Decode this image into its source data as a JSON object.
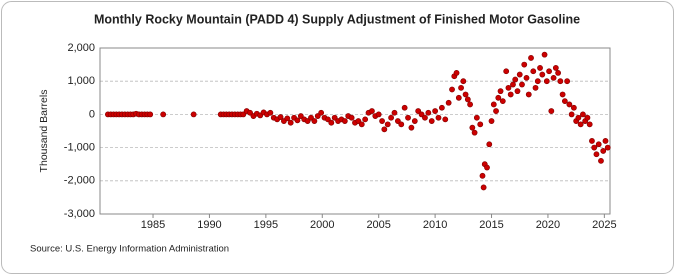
{
  "chart_data": {
    "type": "scatter",
    "title": "Monthly Rocky Mountain (PADD 4) Supply Adjustment of Finished Motor Gasoline",
    "y_label": "Thousand Barrels",
    "source": "Source: U.S. Energy Information Administration",
    "color": "#cc0000",
    "grid": true,
    "xlim": [
      1980.3,
      2025.5
    ],
    "xticks": [
      1985,
      1990,
      1995,
      2000,
      2005,
      2010,
      2015,
      2020,
      2025
    ],
    "ylim": [
      -3000,
      2000
    ],
    "yticks": [
      {
        "value": -3000,
        "label": "-3,000"
      },
      {
        "value": -2000,
        "label": "-2,000"
      },
      {
        "value": -1000,
        "label": "-1,000"
      },
      0,
      {
        "value": 1000,
        "label": "1,000"
      },
      {
        "value": 2000,
        "label": "2,000"
      }
    ],
    "x": [
      1981.0,
      1981.25,
      1981.5,
      1981.75,
      1982.0,
      1982.25,
      1982.5,
      1982.75,
      1983.0,
      1983.25,
      1983.5,
      1983.75,
      1984.0,
      1984.25,
      1984.5,
      1984.75,
      1985.9,
      1988.6,
      1991.0,
      1991.25,
      1991.5,
      1991.75,
      1992.0,
      1992.25,
      1992.5,
      1992.75,
      1993.0,
      1993.3,
      1993.6,
      1993.9,
      1994.2,
      1994.5,
      1994.8,
      1995.1,
      1995.4,
      1995.7,
      1996.0,
      1996.3,
      1996.6,
      1996.9,
      1997.2,
      1997.5,
      1997.8,
      1998.1,
      1998.4,
      1998.7,
      1999.0,
      1999.3,
      1999.6,
      1999.9,
      2000.2,
      2000.5,
      2000.8,
      2001.1,
      2001.4,
      2001.7,
      2002.0,
      2002.3,
      2002.6,
      2002.9,
      2003.2,
      2003.5,
      2003.8,
      2004.1,
      2004.4,
      2004.7,
      2005.0,
      2005.3,
      2005.5,
      2005.8,
      2006.1,
      2006.4,
      2006.7,
      2007.0,
      2007.3,
      2007.6,
      2007.9,
      2008.2,
      2008.5,
      2008.8,
      2009.1,
      2009.4,
      2009.7,
      2010.0,
      2010.3,
      2010.6,
      2010.9,
      2011.2,
      2011.5,
      2011.7,
      2011.9,
      2012.1,
      2012.3,
      2012.5,
      2012.7,
      2012.9,
      2013.1,
      2013.3,
      2013.5,
      2013.7,
      2014.0,
      2014.2,
      2014.3,
      2014.4,
      2014.6,
      2014.8,
      2015.0,
      2015.2,
      2015.4,
      2015.6,
      2015.8,
      2016.0,
      2016.3,
      2016.5,
      2016.7,
      2016.9,
      2017.1,
      2017.3,
      2017.5,
      2017.7,
      2017.9,
      2018.1,
      2018.3,
      2018.5,
      2018.7,
      2018.9,
      2019.1,
      2019.3,
      2019.5,
      2019.7,
      2019.9,
      2020.1,
      2020.3,
      2020.5,
      2020.7,
      2020.9,
      2021.1,
      2021.3,
      2021.5,
      2021.7,
      2021.9,
      2022.1,
      2022.3,
      2022.5,
      2022.7,
      2022.9,
      2023.1,
      2023.3,
      2023.5,
      2023.7,
      2023.9,
      2024.1,
      2024.3,
      2024.5,
      2024.7,
      2024.9,
      2025.1,
      2025.3
    ],
    "values": [
      0,
      0,
      0,
      0,
      0,
      0,
      0,
      0,
      0,
      0,
      20,
      0,
      0,
      0,
      0,
      0,
      0,
      0,
      0,
      0,
      0,
      0,
      0,
      0,
      0,
      0,
      0,
      100,
      50,
      -50,
      20,
      -30,
      60,
      0,
      50,
      -100,
      -150,
      -80,
      -200,
      -120,
      -250,
      -100,
      -180,
      -50,
      -150,
      -200,
      -100,
      -200,
      -50,
      50,
      -100,
      -150,
      -250,
      -100,
      -200,
      -150,
      -200,
      -50,
      -100,
      -250,
      -200,
      -300,
      -150,
      50,
      100,
      -50,
      0,
      -200,
      -450,
      -300,
      -100,
      50,
      -200,
      -300,
      200,
      -100,
      -400,
      -200,
      100,
      0,
      -100,
      50,
      -200,
      100,
      -100,
      200,
      -150,
      350,
      750,
      1150,
      1250,
      500,
      800,
      1000,
      600,
      450,
      300,
      -400,
      -550,
      -100,
      -300,
      -1850,
      -2200,
      -1500,
      -1600,
      -900,
      -200,
      300,
      100,
      500,
      700,
      400,
      1300,
      800,
      600,
      900,
      1050,
      700,
      1200,
      900,
      1500,
      1100,
      600,
      1700,
      1300,
      800,
      1000,
      1400,
      1200,
      1800,
      1000,
      1300,
      100,
      1100,
      1400,
      1250,
      1000,
      600,
      400,
      1000,
      300,
      0,
      200,
      -200,
      -100,
      -300,
      0,
      -200,
      -100,
      -300,
      -800,
      -1000,
      -1200,
      -900,
      -1400,
      -1100,
      -800,
      -1000
    ]
  }
}
